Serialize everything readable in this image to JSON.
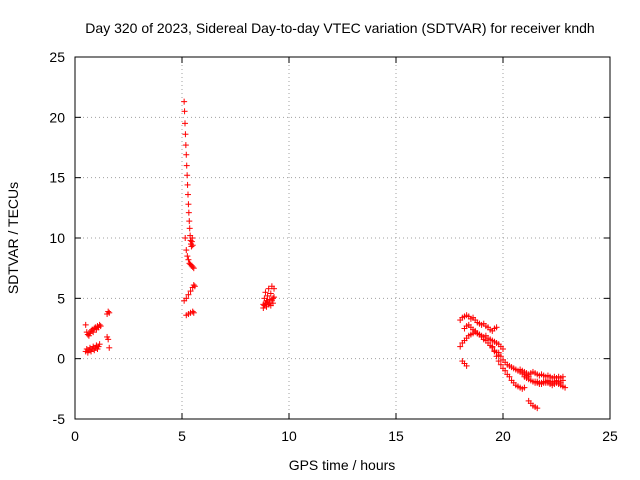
{
  "chart_data": {
    "type": "scatter",
    "title": "Day 320 of 2023, Sidereal Day-to-day VTEC variation (SDTVAR) for receiver kndh",
    "xlabel": "GPS time / hours",
    "ylabel": "SDTVAR / TECUs",
    "xlim": [
      0,
      25
    ],
    "ylim": [
      -5,
      25
    ],
    "xticks": [
      0,
      5,
      10,
      15,
      20,
      25
    ],
    "yticks": [
      -5,
      0,
      5,
      10,
      15,
      20,
      25
    ],
    "grid": true,
    "marker": "+",
    "series": [
      {
        "name": "SDTVAR",
        "color": "#ff0000",
        "x": [
          0.5,
          0.55,
          0.6,
          0.65,
          0.7,
          0.75,
          0.8,
          0.85,
          0.9,
          0.95,
          1.0,
          1.05,
          1.1,
          1.15,
          1.2,
          0.5,
          0.55,
          0.6,
          0.65,
          0.7,
          0.75,
          0.8,
          0.85,
          0.9,
          0.95,
          1.0,
          1.05,
          1.1,
          1.15,
          1.5,
          1.55,
          1.6,
          1.5,
          1.55,
          1.6,
          5.1,
          5.12,
          5.14,
          5.16,
          5.18,
          5.2,
          5.22,
          5.24,
          5.26,
          5.28,
          5.3,
          5.32,
          5.34,
          5.36,
          5.38,
          5.4,
          5.42,
          5.44,
          5.46,
          5.48,
          5.5,
          5.15,
          5.2,
          5.25,
          5.3,
          5.35,
          5.4,
          5.45,
          5.5,
          5.55,
          5.1,
          5.2,
          5.3,
          5.4,
          5.5,
          5.55,
          5.6,
          5.2,
          5.3,
          5.4,
          5.5,
          5.55,
          8.8,
          8.85,
          8.9,
          8.95,
          9.0,
          9.05,
          9.1,
          9.15,
          9.2,
          9.25,
          9.3,
          8.8,
          8.85,
          8.9,
          8.95,
          9.0,
          9.05,
          9.1,
          9.15,
          9.2,
          9.25,
          9.3,
          18.0,
          18.1,
          18.2,
          18.3,
          18.4,
          18.5,
          18.6,
          18.7,
          18.8,
          18.9,
          19.0,
          19.1,
          19.2,
          19.3,
          19.4,
          19.5,
          19.6,
          19.7,
          18.0,
          18.1,
          18.2,
          18.3,
          18.4,
          18.5,
          18.6,
          18.7,
          18.8,
          18.9,
          19.0,
          19.1,
          19.2,
          19.3,
          19.4,
          19.5,
          19.6,
          19.7,
          19.8,
          19.9,
          20.0,
          18.2,
          18.3,
          18.4,
          18.5,
          18.6,
          18.7,
          18.8,
          18.9,
          19.0,
          19.1,
          19.2,
          19.3,
          19.4,
          19.5,
          19.6,
          19.7,
          19.8,
          19.5,
          19.6,
          19.7,
          19.8,
          19.9,
          20.0,
          20.1,
          20.2,
          20.3,
          20.4,
          20.5,
          20.6,
          20.7,
          20.8,
          20.9,
          21.0,
          19.8,
          19.9,
          20.0,
          20.1,
          20.2,
          20.3,
          20.4,
          20.5,
          20.6,
          20.7,
          20.8,
          20.9,
          21.0,
          21.1,
          21.2,
          20.8,
          20.9,
          21.0,
          21.1,
          21.2,
          21.3,
          21.4,
          21.5,
          21.6,
          21.7,
          21.8,
          21.9,
          22.0,
          22.1,
          22.2,
          22.3,
          22.4,
          22.5,
          22.6,
          22.7,
          22.8,
          21.0,
          21.1,
          21.2,
          21.3,
          21.4,
          21.5,
          21.6,
          21.7,
          21.8,
          21.9,
          22.0,
          22.1,
          22.2,
          22.3,
          22.4,
          22.5,
          22.6,
          22.7,
          22.8,
          22.9,
          21.5,
          21.6,
          21.7,
          21.8,
          21.9,
          22.0,
          22.1,
          22.2,
          22.3,
          22.4,
          22.5,
          22.6,
          22.7,
          22.8,
          21.2,
          21.3,
          21.4,
          21.5,
          21.6,
          18.1,
          18.2,
          18.3
        ],
        "y": [
          2.8,
          2.2,
          2.0,
          1.9,
          2.1,
          2.3,
          2.4,
          2.2,
          2.5,
          2.6,
          2.4,
          2.7,
          2.6,
          2.8,
          2.7,
          0.6,
          0.8,
          0.5,
          0.7,
          0.9,
          0.6,
          0.8,
          1.0,
          0.7,
          0.9,
          1.1,
          0.8,
          1.0,
          1.2,
          3.7,
          3.9,
          3.8,
          1.8,
          1.6,
          0.9,
          21.3,
          20.5,
          19.5,
          18.6,
          17.7,
          16.9,
          16.0,
          15.2,
          14.4,
          13.6,
          12.8,
          12.1,
          11.4,
          10.8,
          10.2,
          9.8,
          9.5,
          9.3,
          9.7,
          10.0,
          9.4,
          10.0,
          9.0,
          8.5,
          8.2,
          7.9,
          7.8,
          7.7,
          7.6,
          7.5,
          4.8,
          5.0,
          5.3,
          5.6,
          5.9,
          6.1,
          6.0,
          3.6,
          3.7,
          3.8,
          3.9,
          3.8,
          4.5,
          5.0,
          5.5,
          4.8,
          5.2,
          5.8,
          4.6,
          5.4,
          6.0,
          5.0,
          5.8,
          4.2,
          4.4,
          4.6,
          4.3,
          4.7,
          4.5,
          4.9,
          4.4,
          4.8,
          4.6,
          5.1,
          3.2,
          3.4,
          3.5,
          3.6,
          3.5,
          3.3,
          3.4,
          3.2,
          3.0,
          2.9,
          2.8,
          2.9,
          2.7,
          2.6,
          2.4,
          2.3,
          2.5,
          2.6,
          1.0,
          1.3,
          1.5,
          1.7,
          1.9,
          2.0,
          2.1,
          2.2,
          2.1,
          2.0,
          1.9,
          1.8,
          1.9,
          1.7,
          1.6,
          1.5,
          1.4,
          1.3,
          1.2,
          1.0,
          0.8,
          2.5,
          2.7,
          2.8,
          2.6,
          2.4,
          2.3,
          2.1,
          2.0,
          1.8,
          1.6,
          1.5,
          1.3,
          1.1,
          0.9,
          0.7,
          0.5,
          0.3,
          1.0,
          0.6,
          0.2,
          -0.2,
          -0.5,
          -0.8,
          -1.0,
          -1.3,
          -1.5,
          -1.8,
          -2.0,
          -2.2,
          -2.3,
          -2.4,
          -2.5,
          -2.4,
          0.5,
          0.2,
          -0.1,
          -0.3,
          -0.5,
          -0.6,
          -0.7,
          -0.8,
          -0.9,
          -1.0,
          -1.1,
          -1.2,
          -1.3,
          -1.4,
          -1.5,
          -0.9,
          -1.0,
          -1.1,
          -1.2,
          -1.3,
          -1.2,
          -1.1,
          -1.2,
          -1.3,
          -1.4,
          -1.3,
          -1.4,
          -1.5,
          -1.4,
          -1.5,
          -1.6,
          -1.5,
          -1.6,
          -1.5,
          -1.6,
          -1.5,
          -1.5,
          -1.6,
          -1.7,
          -1.8,
          -1.9,
          -2.0,
          -1.9,
          -2.0,
          -2.1,
          -2.0,
          -1.9,
          -2.0,
          -2.1,
          -2.2,
          -2.1,
          -2.0,
          -2.1,
          -2.2,
          -2.3,
          -2.4,
          -1.9,
          -2.0,
          -2.1,
          -2.0,
          -1.9,
          -2.0,
          -1.8,
          -1.9,
          -2.0,
          -1.9,
          -1.8,
          -1.9,
          -2.0,
          -1.8,
          -3.5,
          -3.7,
          -3.9,
          -4.0,
          -4.1,
          -0.2,
          -0.4,
          -0.6
        ]
      }
    ]
  }
}
